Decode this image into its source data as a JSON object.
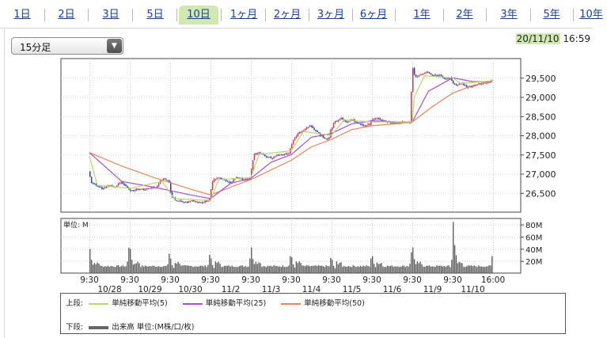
{
  "tabs": [
    {
      "label": "1日",
      "active": false
    },
    {
      "label": "2日",
      "active": false
    },
    {
      "label": "3日",
      "active": false
    },
    {
      "label": "5日",
      "active": false
    },
    {
      "label": "10日",
      "active": true
    },
    {
      "label": "1ヶ月",
      "active": false
    },
    {
      "label": "2ヶ月",
      "active": false
    },
    {
      "label": "3ヶ月",
      "active": false
    },
    {
      "label": "6ヶ月",
      "active": false
    },
    {
      "label": "1年",
      "active": false
    },
    {
      "label": "2年",
      "active": false
    },
    {
      "label": "3年",
      "active": false
    },
    {
      "label": "5年",
      "active": false
    },
    {
      "label": "10年",
      "active": false
    }
  ],
  "interval_select": {
    "value": "15分足"
  },
  "timestamp": {
    "date": "20/11/10",
    "time": "16:59"
  },
  "legend": {
    "upper_label": "上段:",
    "lower_label": "下段:",
    "items": [
      {
        "name": "単純移動平均(5)",
        "color": "#b5d96b"
      },
      {
        "name": "単純移動平均(25)",
        "color": "#a94fd6"
      },
      {
        "name": "単純移動平均(50)",
        "color": "#e8845a"
      }
    ],
    "volume": {
      "name": "出来高 単位:(M株/口/枚)",
      "color": "#666666"
    }
  },
  "chart_data": {
    "type": "candlestick",
    "days": [
      "10/28",
      "10/29",
      "10/30",
      "11/2",
      "11/3",
      "11/4",
      "11/5",
      "11/6",
      "11/9",
      "11/10"
    ],
    "x_time_labels": [
      "9:30",
      "9:30",
      "9:30",
      "9:30",
      "9:30",
      "9:30",
      "9:30",
      "9:30",
      "9:30",
      "9:30",
      "16:00"
    ],
    "price_axis": {
      "ticks": [
        26500,
        27000,
        27500,
        28000,
        28500,
        29000,
        29500
      ],
      "tick_labels": [
        "26,500",
        "27,000",
        "27,500",
        "28,000",
        "28,500",
        "29,000",
        "29,500"
      ],
      "ylim": [
        26000,
        30000
      ]
    },
    "volume_axis": {
      "label": "単位: M",
      "ticks": [
        20,
        40,
        60,
        80
      ],
      "tick_labels": [
        "20M",
        "40M",
        "60M",
        "80M"
      ],
      "ylim": [
        0,
        90
      ]
    },
    "price_path": [
      [
        0,
        27050
      ],
      [
        0.08,
        26750
      ],
      [
        0.2,
        26700
      ],
      [
        0.35,
        26600
      ],
      [
        0.5,
        26700
      ],
      [
        0.65,
        26650
      ],
      [
        0.8,
        26780
      ],
      [
        0.95,
        26650
      ],
      [
        1.0,
        26600
      ],
      [
        1.08,
        26550
      ],
      [
        1.2,
        26620
      ],
      [
        1.35,
        26580
      ],
      [
        1.5,
        26620
      ],
      [
        1.7,
        26650
      ],
      [
        1.8,
        26850
      ],
      [
        1.95,
        26850
      ],
      [
        2.0,
        26800
      ],
      [
        2.05,
        26400
      ],
      [
        2.2,
        26300
      ],
      [
        2.4,
        26250
      ],
      [
        2.6,
        26300
      ],
      [
        2.8,
        26250
      ],
      [
        2.95,
        26300
      ],
      [
        3.0,
        26350
      ],
      [
        3.08,
        26850
      ],
      [
        3.2,
        26900
      ],
      [
        3.35,
        26850
      ],
      [
        3.5,
        26750
      ],
      [
        3.65,
        26900
      ],
      [
        3.8,
        26850
      ],
      [
        3.95,
        26850
      ],
      [
        4.0,
        26900
      ],
      [
        4.1,
        27500
      ],
      [
        4.25,
        27550
      ],
      [
        4.4,
        27450
      ],
      [
        4.55,
        27400
      ],
      [
        4.7,
        27500
      ],
      [
        4.85,
        27500
      ],
      [
        4.98,
        27550
      ],
      [
        5.0,
        27650
      ],
      [
        5.08,
        27900
      ],
      [
        5.2,
        28050
      ],
      [
        5.35,
        28150
      ],
      [
        5.5,
        28250
      ],
      [
        5.65,
        28100
      ],
      [
        5.8,
        27950
      ],
      [
        5.95,
        27900
      ],
      [
        6.0,
        28150
      ],
      [
        6.1,
        28350
      ],
      [
        6.25,
        28450
      ],
      [
        6.4,
        28350
      ],
      [
        6.55,
        28400
      ],
      [
        6.7,
        28300
      ],
      [
        6.85,
        28250
      ],
      [
        6.98,
        28300
      ],
      [
        7.0,
        28400
      ],
      [
        7.15,
        28450
      ],
      [
        7.3,
        28380
      ],
      [
        7.45,
        28350
      ],
      [
        7.6,
        28320
      ],
      [
        7.75,
        28350
      ],
      [
        7.9,
        28330
      ],
      [
        7.98,
        28350
      ],
      [
        8.0,
        29150
      ],
      [
        8.02,
        29800
      ],
      [
        8.1,
        29500
      ],
      [
        8.25,
        29600
      ],
      [
        8.4,
        29650
      ],
      [
        8.55,
        29550
      ],
      [
        8.7,
        29580
      ],
      [
        8.85,
        29450
      ],
      [
        8.98,
        29500
      ],
      [
        9.0,
        29400
      ],
      [
        9.1,
        29300
      ],
      [
        9.25,
        29350
      ],
      [
        9.4,
        29250
      ],
      [
        9.55,
        29300
      ],
      [
        9.7,
        29350
      ],
      [
        9.85,
        29380
      ],
      [
        9.98,
        29420
      ]
    ],
    "ma5_path": [
      [
        0,
        27450
      ],
      [
        0.2,
        26700
      ],
      [
        1,
        26620
      ],
      [
        1.8,
        26800
      ],
      [
        2.1,
        26350
      ],
      [
        3,
        26300
      ],
      [
        3.2,
        26850
      ],
      [
        4,
        26900
      ],
      [
        4.2,
        27500
      ],
      [
        5,
        27600
      ],
      [
        5.3,
        28100
      ],
      [
        6,
        28000
      ],
      [
        6.3,
        28400
      ],
      [
        7,
        28350
      ],
      [
        7.5,
        28350
      ],
      [
        8,
        28350
      ],
      [
        8.05,
        29000
      ],
      [
        8.3,
        29550
      ],
      [
        9,
        29500
      ],
      [
        9.2,
        29350
      ],
      [
        9.98,
        29420
      ]
    ],
    "ma25_path": [
      [
        0,
        27550
      ],
      [
        0.8,
        26800
      ],
      [
        1.6,
        26650
      ],
      [
        2.5,
        26450
      ],
      [
        3.0,
        26350
      ],
      [
        3.5,
        26750
      ],
      [
        4.0,
        26880
      ],
      [
        4.5,
        27300
      ],
      [
        5.0,
        27500
      ],
      [
        5.5,
        27950
      ],
      [
        6.0,
        28050
      ],
      [
        6.5,
        28300
      ],
      [
        7.0,
        28380
      ],
      [
        7.6,
        28350
      ],
      [
        8.0,
        28350
      ],
      [
        8.4,
        29150
      ],
      [
        9.0,
        29500
      ],
      [
        9.5,
        29400
      ],
      [
        9.98,
        29400
      ]
    ],
    "ma50_path": [
      [
        0,
        27550
      ],
      [
        0.8,
        27200
      ],
      [
        1.6,
        26900
      ],
      [
        2.5,
        26600
      ],
      [
        3.0,
        26450
      ],
      [
        3.5,
        26650
      ],
      [
        4.0,
        26850
      ],
      [
        4.5,
        27100
      ],
      [
        5.0,
        27350
      ],
      [
        5.5,
        27700
      ],
      [
        6.0,
        27900
      ],
      [
        6.5,
        28150
      ],
      [
        7.0,
        28250
      ],
      [
        7.6,
        28300
      ],
      [
        8.0,
        28350
      ],
      [
        8.5,
        28750
      ],
      [
        9.0,
        29100
      ],
      [
        9.5,
        29300
      ],
      [
        9.98,
        29400
      ]
    ],
    "volume_open_spike": [
      40,
      40,
      24,
      24,
      42,
      26,
      22,
      28,
      42,
      84,
      45,
      40
    ],
    "volume_close_spike": [
      42,
      32,
      30,
      24,
      28,
      25,
      24,
      34,
      22,
      28,
      42
    ],
    "volume_base": [
      10,
      13
    ]
  }
}
